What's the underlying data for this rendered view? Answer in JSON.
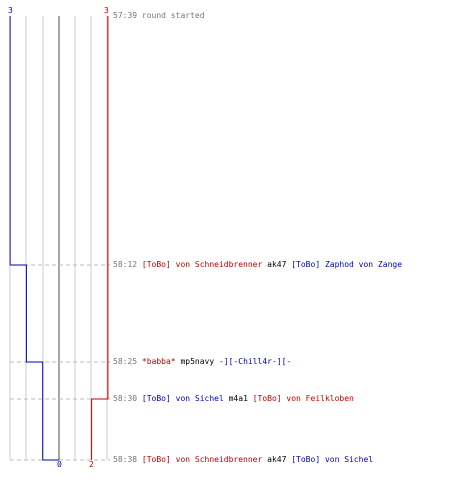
{
  "colors": {
    "blue": "#0000c0",
    "red": "#c00000",
    "grey": "#777777",
    "black": "#000000"
  },
  "team_counts": {
    "blue_start": "3",
    "red_start": "3",
    "blue_end": "0",
    "red_end": "2"
  },
  "events": [
    {
      "time": "57:39",
      "segments": [
        {
          "text": "round started",
          "color": "grey"
        }
      ],
      "blue_after": 3,
      "red_after": 3
    },
    {
      "time": "58:12",
      "segments": [
        {
          "text": "[ToBo] von Schneidbrenner",
          "color": "red"
        },
        {
          "text": " ak47 ",
          "color": "black"
        },
        {
          "text": "[ToBo] Zaphod von Zange",
          "color": "blue"
        }
      ],
      "blue_after": 2,
      "red_after": 3
    },
    {
      "time": "58:25",
      "segments": [
        {
          "text": "*babba*",
          "color": "red"
        },
        {
          "text": " mp5navy ",
          "color": "black"
        },
        {
          "text": "-][-Chill4r-][-",
          "color": "blue"
        }
      ],
      "blue_after": 1,
      "red_after": 3
    },
    {
      "time": "58:30",
      "segments": [
        {
          "text": "[ToBo] von Sichel",
          "color": "blue"
        },
        {
          "text": " m4a1 ",
          "color": "black"
        },
        {
          "text": "[ToBo] von Feilkloben",
          "color": "red"
        }
      ],
      "blue_after": 1,
      "red_after": 2
    },
    {
      "time": "58:38",
      "segments": [
        {
          "text": "[ToBo] von Schneidbrenner",
          "color": "red"
        },
        {
          "text": " ak47 ",
          "color": "black"
        },
        {
          "text": "[ToBo] von Sichel",
          "color": "blue"
        }
      ],
      "blue_after": 0,
      "red_after": 2
    }
  ]
}
